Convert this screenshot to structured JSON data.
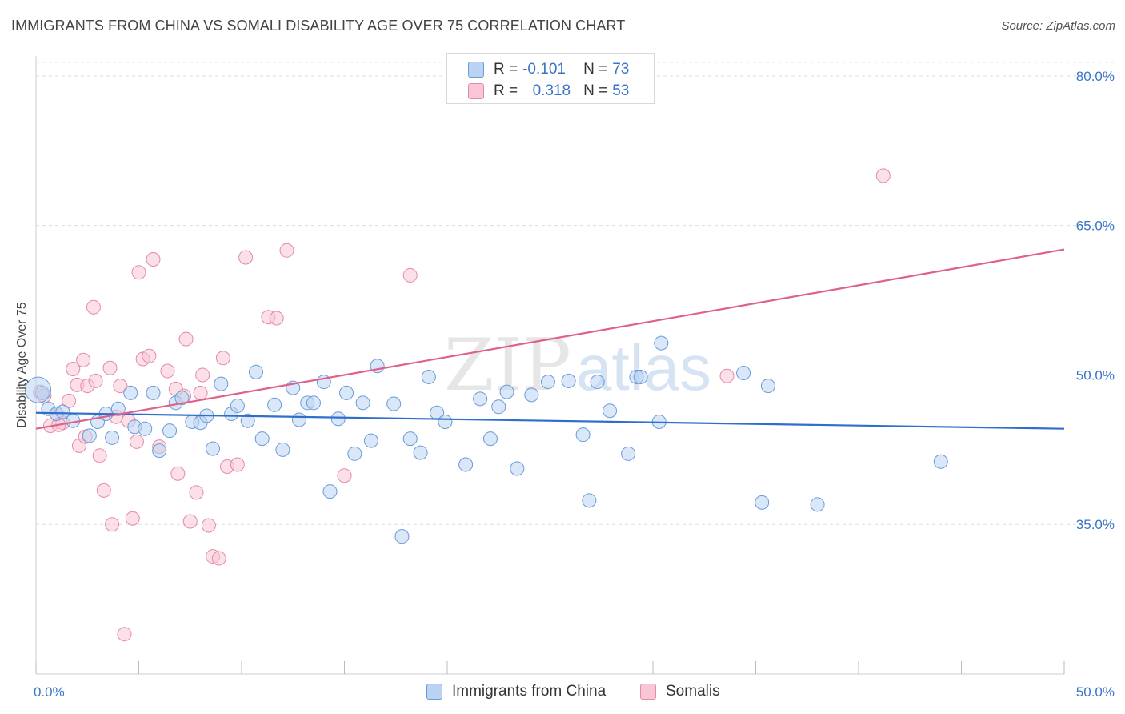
{
  "title": "IMMIGRANTS FROM CHINA VS SOMALI DISABILITY AGE OVER 75 CORRELATION CHART",
  "source": "Source: ZipAtlas.com",
  "watermark": {
    "zip": "ZIP",
    "atlas": "atlas"
  },
  "legend": {
    "rows": [
      {
        "r_label": "R = ",
        "r_value": "-0.101",
        "n_label": "N = ",
        "n_value": "73"
      },
      {
        "r_label": "R = ",
        "r_value": "0.318",
        "n_label": "N = ",
        "n_value": "53"
      }
    ]
  },
  "chart_data": {
    "type": "scatter",
    "title": "IMMIGRANTS FROM CHINA VS SOMALI DISABILITY AGE OVER 75 CORRELATION CHART",
    "xlabel": "",
    "ylabel": "Disability Age Over 75",
    "xlim": [
      0,
      50
    ],
    "ylim": [
      20,
      82
    ],
    "x_tick_labels": [
      {
        "value": 0,
        "label": "0.0%"
      },
      {
        "value": 50,
        "label": "50.0%"
      }
    ],
    "y_tick_labels": [
      {
        "value": 35,
        "label": "35.0%"
      },
      {
        "value": 50,
        "label": "50.0%"
      },
      {
        "value": 65,
        "label": "65.0%"
      },
      {
        "value": 80,
        "label": "80.0%"
      }
    ],
    "grid": "horizontal-dashed",
    "legend_position": "top-center",
    "colors": {
      "china_fill": "#b9d3f3",
      "china_stroke": "#6b9bd8",
      "china_line": "#2f6fcc",
      "somali_fill": "#f8c6d4",
      "somali_stroke": "#e58aa8",
      "somali_line": "#e0608b",
      "axis_label": "#3a74c8"
    },
    "series": [
      {
        "name": "Immigrants from China",
        "r": -0.101,
        "n": 73,
        "trend": {
          "x": [
            0,
            50
          ],
          "y": [
            46.2,
            44.6
          ]
        },
        "points": [
          [
            0.3,
            48.2
          ],
          [
            0.6,
            46.6
          ],
          [
            1.0,
            46.1
          ],
          [
            1.3,
            46.3
          ],
          [
            1.8,
            45.4
          ],
          [
            2.6,
            43.9
          ],
          [
            3.0,
            45.3
          ],
          [
            3.4,
            46.1
          ],
          [
            3.7,
            43.7
          ],
          [
            4.0,
            46.6
          ],
          [
            4.6,
            48.2
          ],
          [
            4.8,
            44.8
          ],
          [
            5.3,
            44.6
          ],
          [
            5.7,
            48.2
          ],
          [
            6.0,
            42.4
          ],
          [
            6.5,
            44.4
          ],
          [
            6.8,
            47.2
          ],
          [
            7.1,
            47.7
          ],
          [
            7.6,
            45.3
          ],
          [
            8.0,
            45.2
          ],
          [
            8.3,
            45.9
          ],
          [
            8.6,
            42.6
          ],
          [
            9.0,
            49.1
          ],
          [
            9.5,
            46.1
          ],
          [
            9.8,
            46.9
          ],
          [
            10.3,
            45.4
          ],
          [
            10.7,
            50.3
          ],
          [
            11.0,
            43.6
          ],
          [
            11.6,
            47.0
          ],
          [
            12.0,
            42.5
          ],
          [
            12.5,
            48.7
          ],
          [
            12.8,
            45.5
          ],
          [
            13.2,
            47.2
          ],
          [
            13.5,
            47.2
          ],
          [
            14.0,
            49.3
          ],
          [
            14.3,
            38.3
          ],
          [
            14.7,
            45.6
          ],
          [
            15.1,
            48.2
          ],
          [
            15.5,
            42.1
          ],
          [
            15.9,
            47.2
          ],
          [
            16.3,
            43.4
          ],
          [
            16.6,
            50.9
          ],
          [
            17.4,
            47.1
          ],
          [
            17.8,
            33.8
          ],
          [
            18.2,
            43.6
          ],
          [
            18.7,
            42.2
          ],
          [
            19.1,
            49.8
          ],
          [
            19.5,
            46.2
          ],
          [
            19.9,
            45.3
          ],
          [
            20.9,
            41.0
          ],
          [
            21.6,
            47.6
          ],
          [
            22.1,
            43.6
          ],
          [
            22.5,
            46.8
          ],
          [
            22.9,
            48.3
          ],
          [
            23.4,
            40.6
          ],
          [
            24.1,
            48.0
          ],
          [
            24.9,
            49.3
          ],
          [
            25.9,
            49.4
          ],
          [
            26.6,
            44.0
          ],
          [
            26.9,
            37.4
          ],
          [
            27.3,
            49.3
          ],
          [
            27.9,
            46.4
          ],
          [
            28.8,
            42.1
          ],
          [
            29.2,
            49.8
          ],
          [
            29.4,
            49.8
          ],
          [
            30.3,
            45.3
          ],
          [
            30.4,
            53.2
          ],
          [
            34.4,
            50.2
          ],
          [
            35.3,
            37.2
          ],
          [
            35.6,
            48.9
          ],
          [
            38.0,
            37.0
          ],
          [
            44.0,
            41.3
          ],
          [
            0.1,
            48.5
          ]
        ]
      },
      {
        "name": "Somalis",
        "r": 0.318,
        "n": 53,
        "trend": {
          "x": [
            0,
            50
          ],
          "y": [
            44.6,
            62.6
          ]
        },
        "points": [
          [
            0.2,
            48.3
          ],
          [
            0.4,
            47.9
          ],
          [
            0.7,
            44.9
          ],
          [
            1.0,
            46.1
          ],
          [
            1.3,
            45.2
          ],
          [
            1.6,
            47.4
          ],
          [
            1.8,
            50.6
          ],
          [
            2.0,
            49.0
          ],
          [
            2.1,
            42.9
          ],
          [
            2.3,
            51.5
          ],
          [
            2.5,
            48.9
          ],
          [
            2.8,
            56.8
          ],
          [
            2.9,
            49.4
          ],
          [
            3.1,
            41.9
          ],
          [
            3.3,
            38.4
          ],
          [
            3.6,
            50.7
          ],
          [
            3.7,
            35.0
          ],
          [
            3.9,
            45.8
          ],
          [
            4.1,
            48.9
          ],
          [
            4.3,
            24.0
          ],
          [
            4.5,
            45.4
          ],
          [
            4.7,
            35.6
          ],
          [
            4.9,
            43.3
          ],
          [
            5.0,
            60.3
          ],
          [
            5.2,
            51.6
          ],
          [
            5.5,
            51.9
          ],
          [
            5.7,
            61.6
          ],
          [
            6.0,
            42.8
          ],
          [
            6.4,
            50.4
          ],
          [
            6.9,
            40.1
          ],
          [
            7.2,
            47.9
          ],
          [
            7.3,
            53.6
          ],
          [
            7.5,
            35.3
          ],
          [
            7.8,
            38.2
          ],
          [
            8.1,
            50.0
          ],
          [
            8.4,
            34.9
          ],
          [
            8.6,
            31.8
          ],
          [
            8.9,
            31.6
          ],
          [
            9.1,
            51.7
          ],
          [
            9.3,
            40.8
          ],
          [
            9.8,
            41.0
          ],
          [
            10.2,
            61.8
          ],
          [
            11.3,
            55.8
          ],
          [
            11.7,
            55.7
          ],
          [
            12.2,
            62.5
          ],
          [
            15.0,
            39.9
          ],
          [
            18.2,
            60.0
          ],
          [
            33.6,
            49.9
          ],
          [
            41.2,
            70.0
          ],
          [
            1.1,
            45.0
          ],
          [
            2.4,
            43.8
          ],
          [
            6.8,
            48.6
          ],
          [
            8.0,
            48.2
          ]
        ]
      }
    ]
  },
  "bottom_legend": [
    {
      "label": "Immigrants from China"
    },
    {
      "label": "Somalis"
    }
  ]
}
